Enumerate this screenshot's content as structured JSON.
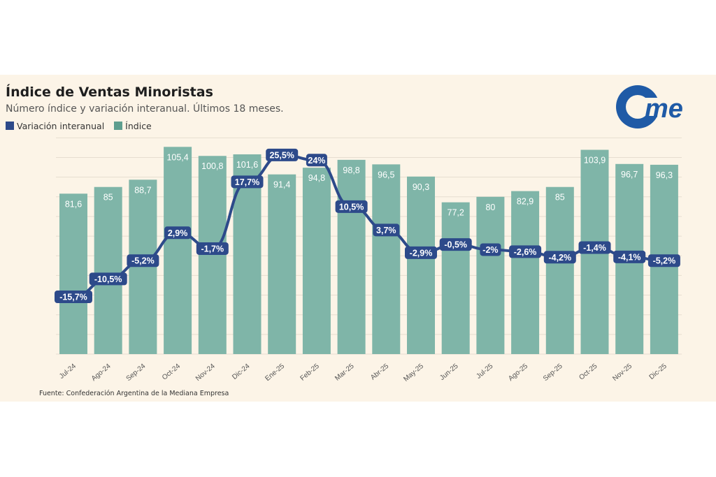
{
  "chart_data": {
    "type": "bar+line",
    "title": "Índice de Ventas Minoristas",
    "subtitle": "Número índice y variación interanual. Últimos 18 meses.",
    "categories": [
      "Jul-24",
      "Ago-24",
      "Sep-24",
      "Oct-24",
      "Nov-24",
      "Dic-24",
      "Ene-25",
      "Feb-25",
      "Mar-25",
      "Abr-25",
      "May-25",
      "Jun-25",
      "Jul-25",
      "Ago-25",
      "Sep-25",
      "Oct-25",
      "Nov-25",
      "Dic-25"
    ],
    "series": [
      {
        "name": "Variación interanual",
        "type": "line",
        "color": "#2d4a8a",
        "values": [
          -15.7,
          -10.5,
          -5.2,
          2.9,
          -1.7,
          17.7,
          25.5,
          24,
          10.5,
          3.7,
          -2.9,
          -0.5,
          -2,
          -2.6,
          -4.2,
          -1.4,
          -4.1,
          -5.2
        ],
        "labels": [
          "-15,7%",
          "-10,5%",
          "-5,2%",
          "2,9%",
          "-1,7%",
          "17,7%",
          "25,5%",
          "24%",
          "10,5%",
          "3,7%",
          "-2,9%",
          "-0,5%",
          "-2%",
          "-2,6%",
          "-4,2%",
          "-1,4%",
          "-4,1%",
          "-5,2%"
        ]
      },
      {
        "name": "Índice",
        "type": "bar",
        "color": "#7fb5a8",
        "values": [
          81.6,
          85,
          88.7,
          105.4,
          100.8,
          101.6,
          91.4,
          94.8,
          98.8,
          96.5,
          90.3,
          77.2,
          80,
          82.9,
          85,
          103.9,
          96.7,
          96.3
        ],
        "labels": [
          "81,6",
          "85",
          "88,7",
          "105,4",
          "100,8",
          "101,6",
          "91,4",
          "94,8",
          "98,8",
          "96,5",
          "90,3",
          "77,2",
          "80",
          "82,9",
          "85",
          "103,9",
          "96,7",
          "96,3"
        ]
      }
    ],
    "grid": true,
    "legend_placement": "top-left",
    "source": "Fuente: Confederación Argentina de la Mediana Empresa"
  },
  "logo": {
    "text": "came",
    "color": "#1f5aa6"
  },
  "colors": {
    "background": "#fcf4e7",
    "bar": "#7fb5a8",
    "line": "#2d4a8a"
  }
}
